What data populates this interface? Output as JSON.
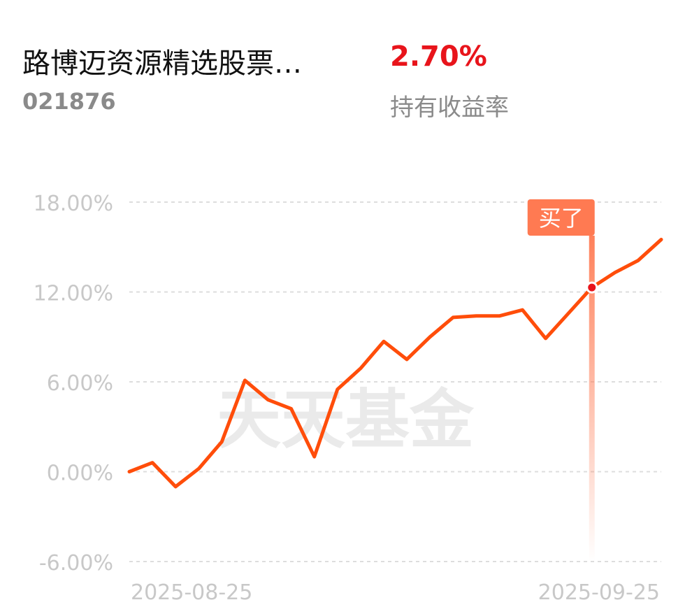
{
  "header": {
    "fund_name": "路博迈资源精选股票…",
    "fund_code": "021876",
    "holding_return": "2.70%",
    "holding_return_label": "持有收益率"
  },
  "colors": {
    "line": "#ff4d0a",
    "return_positive": "#e8141b",
    "marker_tag": "#ff7a52",
    "grid": "#dddddd",
    "tick_label": "#c8c8c8"
  },
  "chart_data": {
    "type": "line",
    "watermark": "天天基金",
    "y_ticks": [
      "18.00%",
      "12.00%",
      "6.00%",
      "0.00%",
      "-6.00%"
    ],
    "y_tick_values": [
      18,
      12,
      6,
      0,
      -6
    ],
    "ylim": [
      -6,
      18
    ],
    "x_tick_labels": [
      "2025-08-25",
      "2025-09-25"
    ],
    "grid": true,
    "series": [
      {
        "values": [
          0.0,
          0.6,
          -1.0,
          0.2,
          2.0,
          6.1,
          4.8,
          4.2,
          1.0,
          5.5,
          6.9,
          8.7,
          7.5,
          9.0,
          10.3,
          10.4,
          10.4,
          10.8,
          8.9,
          10.6,
          12.3,
          13.3,
          14.1,
          15.5
        ]
      }
    ],
    "buy_marker": {
      "label": "买了",
      "index": 20,
      "value": 12.3
    }
  }
}
